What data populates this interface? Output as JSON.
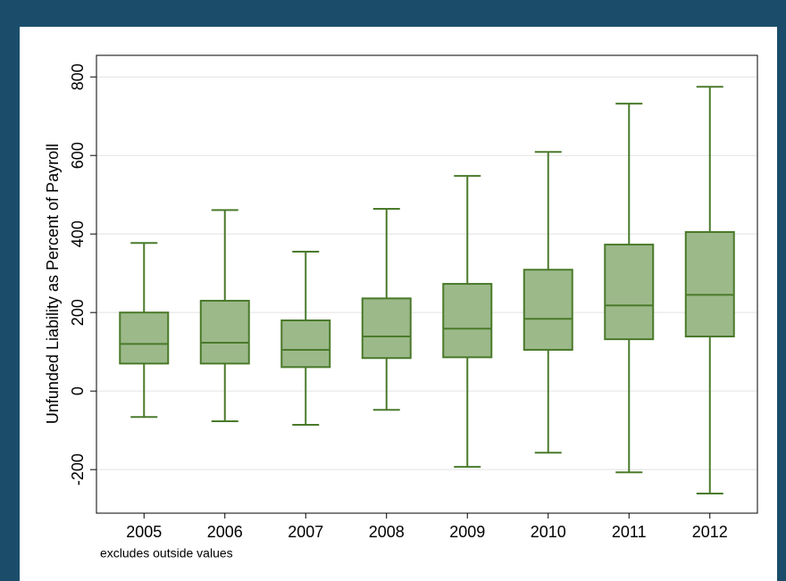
{
  "chart_data": {
    "type": "box",
    "ylabel": "Unfunded Liability as Percent of Payroll",
    "note": "excludes outside values",
    "categories": [
      "2005",
      "2006",
      "2007",
      "2008",
      "2009",
      "2010",
      "2011",
      "2012"
    ],
    "boxes": [
      {
        "whislo": -66,
        "q1": 70,
        "med": 120,
        "q3": 200,
        "whishi": 377
      },
      {
        "whislo": -77,
        "q1": 70,
        "med": 123,
        "q3": 230,
        "whishi": 461
      },
      {
        "whislo": -86,
        "q1": 61,
        "med": 105,
        "q3": 180,
        "whishi": 355
      },
      {
        "whislo": -48,
        "q1": 84,
        "med": 139,
        "q3": 236,
        "whishi": 464
      },
      {
        "whislo": -193,
        "q1": 86,
        "med": 159,
        "q3": 273,
        "whishi": 548
      },
      {
        "whislo": -157,
        "q1": 105,
        "med": 184,
        "q3": 309,
        "whishi": 609
      },
      {
        "whislo": -207,
        "q1": 132,
        "med": 218,
        "q3": 373,
        "whishi": 732
      },
      {
        "whislo": -261,
        "q1": 139,
        "med": 245,
        "q3": 405,
        "whishi": 775
      }
    ],
    "color": "#9cb98a",
    "edgecolor": "#4a7a2a",
    "ylim": [
      -311,
      855
    ],
    "yticks": [
      -200,
      0,
      200,
      400,
      600,
      800
    ],
    "grid": true
  }
}
